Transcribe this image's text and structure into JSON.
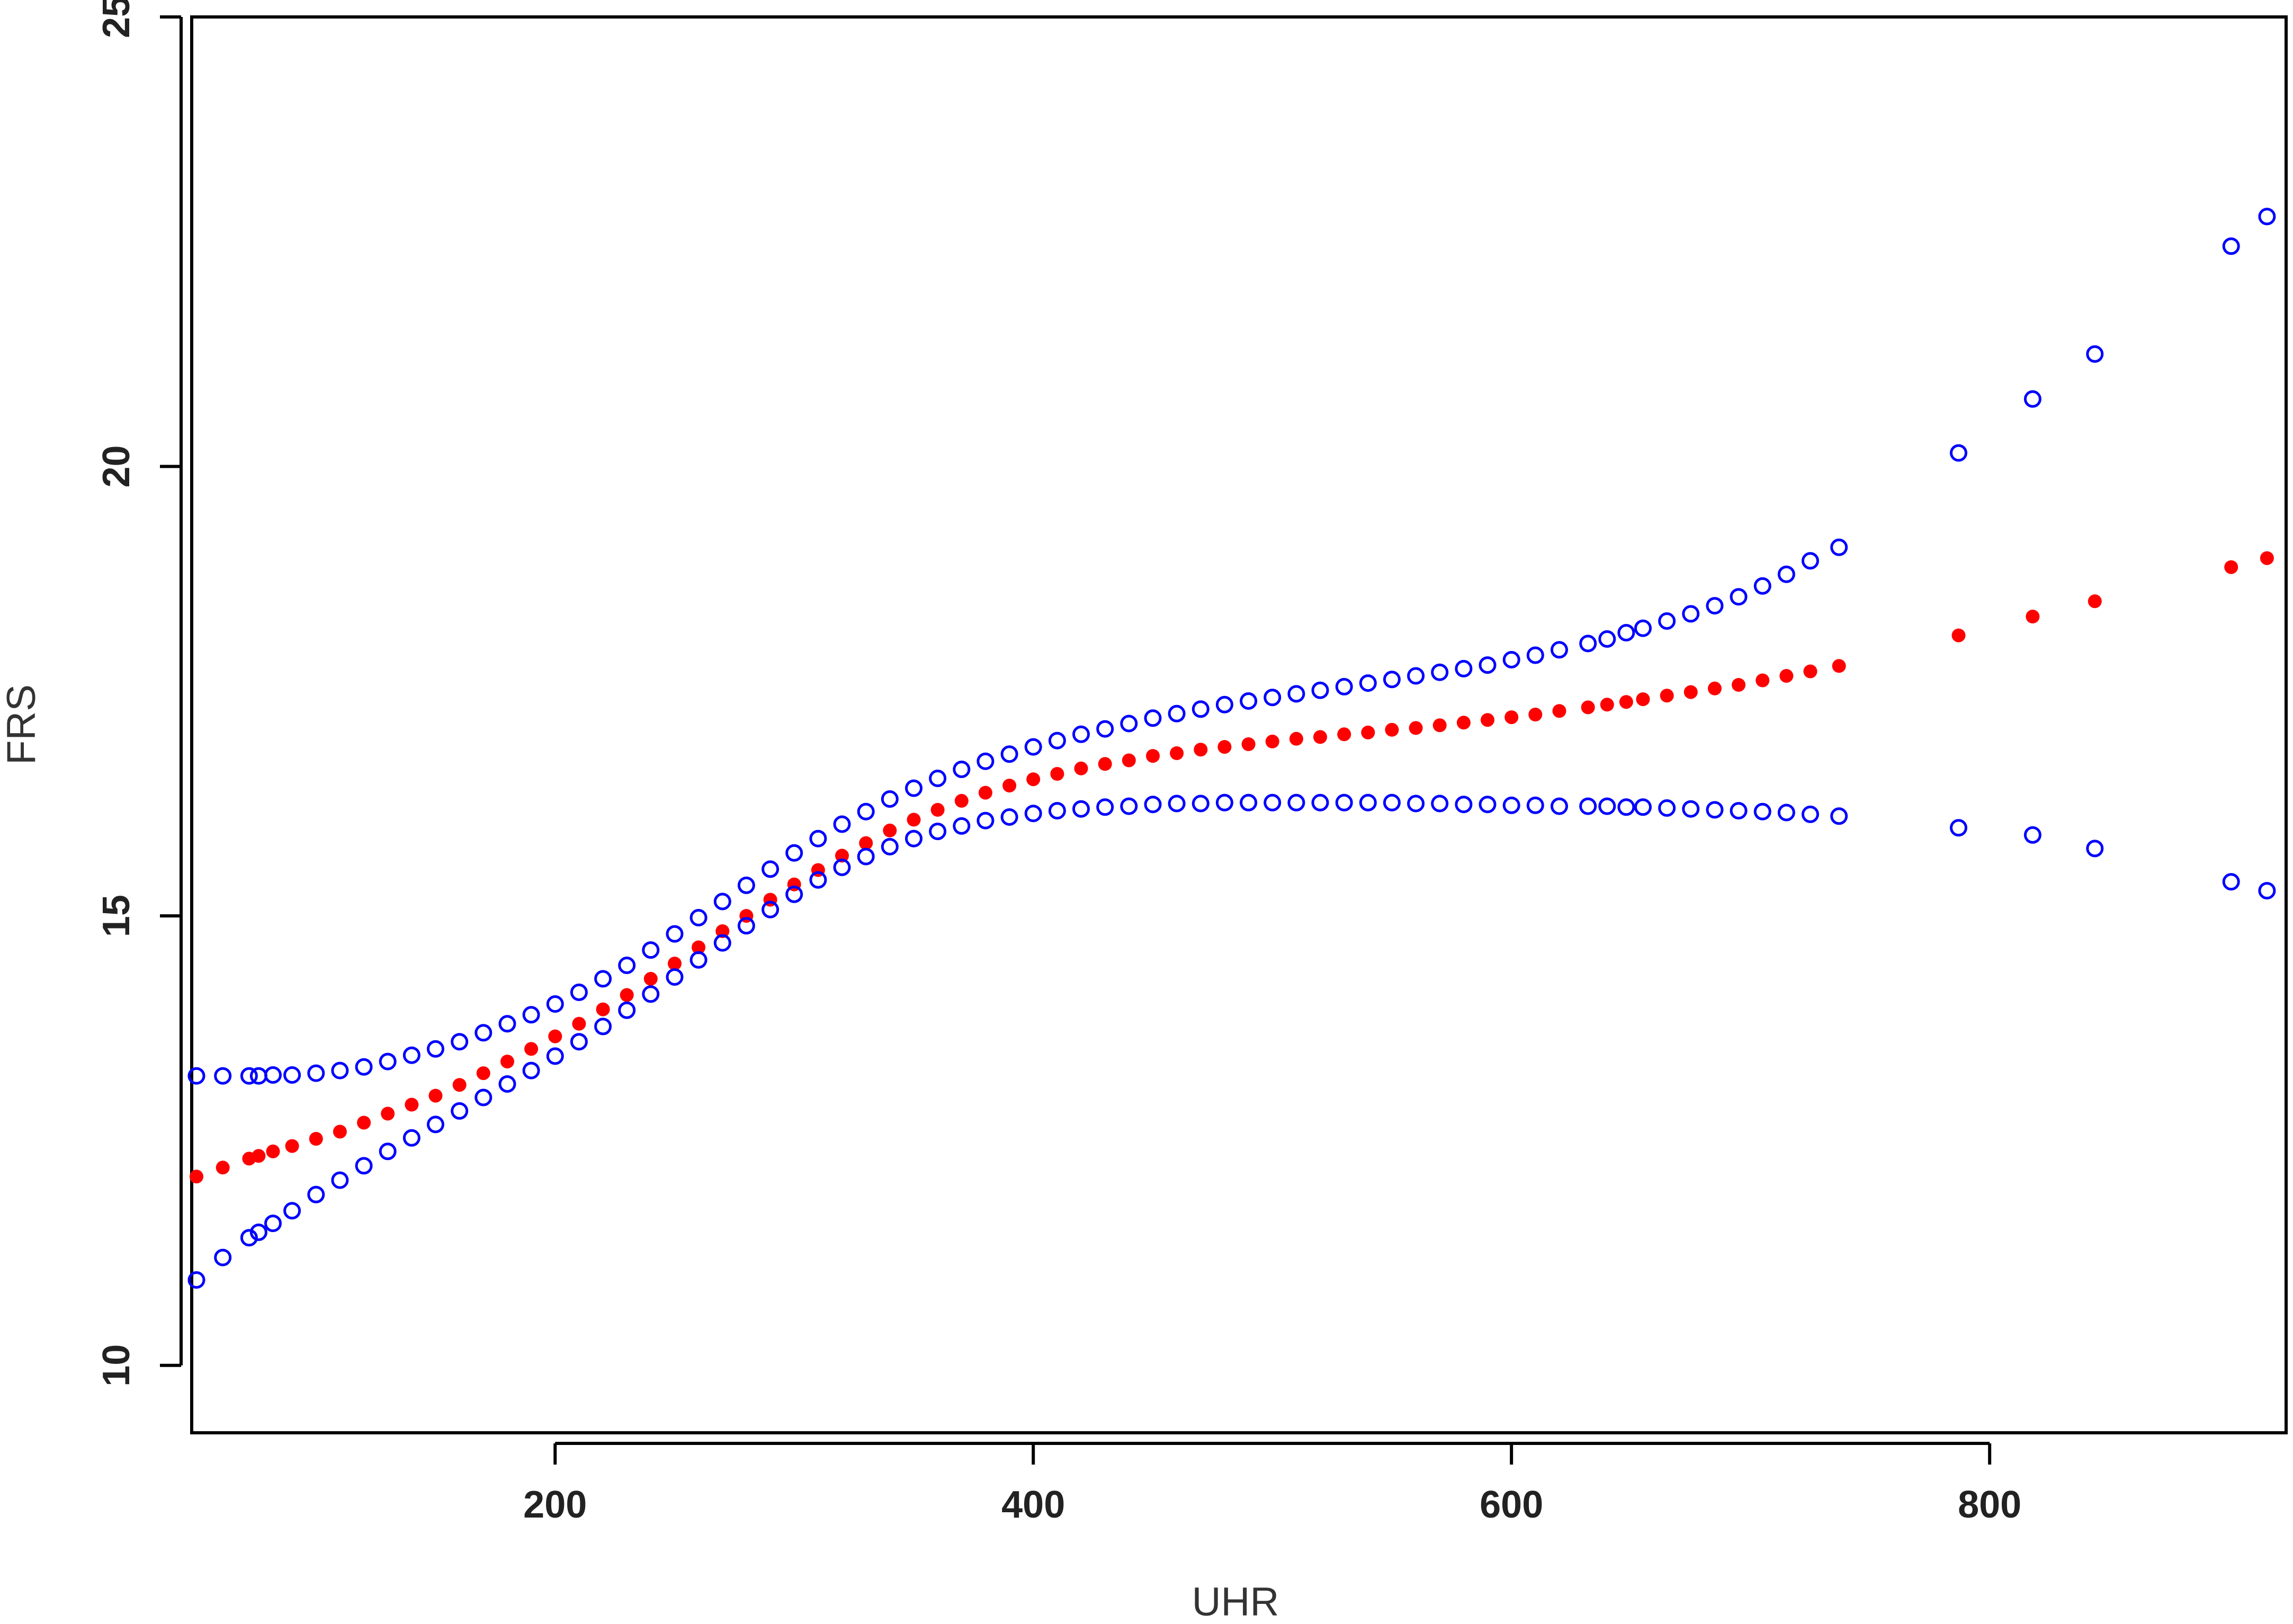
{
  "chart_data": {
    "type": "scatter",
    "title": "",
    "xlabel": "UHR",
    "ylabel": "FRS",
    "xlim": [
      48,
      924
    ],
    "ylim": [
      9.25,
      25
    ],
    "xticks": [
      200,
      400,
      600,
      800
    ],
    "xtick_labels": [
      "200",
      "400",
      "600",
      "800"
    ],
    "yticks": [
      10,
      15,
      20,
      25
    ],
    "ytick_labels": [
      "10",
      "15",
      "20",
      "25"
    ],
    "grid": false,
    "legend": "none",
    "series": [
      {
        "marker": "open-circle",
        "color": "#0000ff",
        "points": [
          [
            50,
            13.22
          ],
          [
            61,
            13.22
          ],
          [
            72,
            13.22
          ],
          [
            76,
            13.22
          ],
          [
            82,
            13.23
          ],
          [
            90,
            13.23
          ],
          [
            100,
            13.25
          ],
          [
            110,
            13.28
          ],
          [
            120,
            13.32
          ],
          [
            130,
            13.38
          ],
          [
            140,
            13.45
          ],
          [
            150,
            13.52
          ],
          [
            160,
            13.6
          ],
          [
            170,
            13.7
          ],
          [
            180,
            13.8
          ],
          [
            190,
            13.9
          ],
          [
            200,
            14.02
          ],
          [
            210,
            14.15
          ],
          [
            220,
            14.3
          ],
          [
            230,
            14.45
          ],
          [
            240,
            14.62
          ],
          [
            250,
            14.8
          ],
          [
            260,
            14.98
          ],
          [
            270,
            15.16
          ],
          [
            280,
            15.34
          ],
          [
            290,
            15.52
          ],
          [
            300,
            15.7
          ],
          [
            310,
            15.86
          ],
          [
            320,
            16.02
          ],
          [
            330,
            16.16
          ],
          [
            340,
            16.3
          ],
          [
            350,
            16.42
          ],
          [
            360,
            16.53
          ],
          [
            370,
            16.63
          ],
          [
            380,
            16.72
          ],
          [
            390,
            16.8
          ],
          [
            400,
            16.88
          ],
          [
            410,
            16.95
          ],
          [
            420,
            17.02
          ],
          [
            430,
            17.08
          ],
          [
            440,
            17.14
          ],
          [
            450,
            17.2
          ],
          [
            460,
            17.25
          ],
          [
            470,
            17.3
          ],
          [
            480,
            17.35
          ],
          [
            490,
            17.39
          ],
          [
            500,
            17.43
          ],
          [
            510,
            17.47
          ],
          [
            520,
            17.51
          ],
          [
            530,
            17.55
          ],
          [
            540,
            17.59
          ],
          [
            550,
            17.63
          ],
          [
            560,
            17.67
          ],
          [
            570,
            17.71
          ],
          [
            580,
            17.75
          ],
          [
            590,
            17.79
          ],
          [
            600,
            17.85
          ],
          [
            610,
            17.9
          ],
          [
            620,
            17.96
          ],
          [
            632,
            18.03
          ],
          [
            640,
            18.08
          ],
          [
            648,
            18.15
          ],
          [
            655,
            18.2
          ],
          [
            665,
            18.28
          ],
          [
            675,
            18.36
          ],
          [
            685,
            18.45
          ],
          [
            695,
            18.55
          ],
          [
            705,
            18.67
          ],
          [
            715,
            18.8
          ],
          [
            725,
            18.95
          ],
          [
            737,
            19.1
          ],
          [
            787,
            20.15
          ],
          [
            818,
            20.75
          ],
          [
            844,
            21.25
          ],
          [
            901,
            22.45
          ],
          [
            916,
            22.78
          ]
        ]
      },
      {
        "marker": "filled-circle",
        "color": "#ff0000",
        "points": [
          [
            50,
            12.1
          ],
          [
            61,
            12.2
          ],
          [
            72,
            12.3
          ],
          [
            76,
            12.33
          ],
          [
            82,
            12.38
          ],
          [
            90,
            12.44
          ],
          [
            100,
            12.52
          ],
          [
            110,
            12.6
          ],
          [
            120,
            12.7
          ],
          [
            130,
            12.8
          ],
          [
            140,
            12.9
          ],
          [
            150,
            13.0
          ],
          [
            160,
            13.12
          ],
          [
            170,
            13.25
          ],
          [
            180,
            13.38
          ],
          [
            190,
            13.52
          ],
          [
            200,
            13.66
          ],
          [
            210,
            13.8
          ],
          [
            220,
            13.96
          ],
          [
            230,
            14.12
          ],
          [
            240,
            14.3
          ],
          [
            250,
            14.47
          ],
          [
            260,
            14.65
          ],
          [
            270,
            14.83
          ],
          [
            280,
            15.0
          ],
          [
            290,
            15.18
          ],
          [
            300,
            15.35
          ],
          [
            310,
            15.51
          ],
          [
            320,
            15.67
          ],
          [
            330,
            15.81
          ],
          [
            340,
            15.95
          ],
          [
            350,
            16.07
          ],
          [
            360,
            16.18
          ],
          [
            370,
            16.28
          ],
          [
            380,
            16.37
          ],
          [
            390,
            16.45
          ],
          [
            400,
            16.52
          ],
          [
            410,
            16.58
          ],
          [
            420,
            16.64
          ],
          [
            430,
            16.69
          ],
          [
            440,
            16.73
          ],
          [
            450,
            16.78
          ],
          [
            460,
            16.81
          ],
          [
            470,
            16.85
          ],
          [
            480,
            16.88
          ],
          [
            490,
            16.91
          ],
          [
            500,
            16.94
          ],
          [
            510,
            16.97
          ],
          [
            520,
            16.99
          ],
          [
            530,
            17.02
          ],
          [
            540,
            17.04
          ],
          [
            550,
            17.07
          ],
          [
            560,
            17.09
          ],
          [
            570,
            17.12
          ],
          [
            580,
            17.15
          ],
          [
            590,
            17.18
          ],
          [
            600,
            17.21
          ],
          [
            610,
            17.24
          ],
          [
            620,
            17.28
          ],
          [
            632,
            17.32
          ],
          [
            640,
            17.35
          ],
          [
            648,
            17.38
          ],
          [
            655,
            17.41
          ],
          [
            665,
            17.45
          ],
          [
            675,
            17.49
          ],
          [
            685,
            17.53
          ],
          [
            695,
            17.57
          ],
          [
            705,
            17.62
          ],
          [
            715,
            17.67
          ],
          [
            725,
            17.72
          ],
          [
            737,
            17.78
          ],
          [
            787,
            18.12
          ],
          [
            818,
            18.33
          ],
          [
            844,
            18.5
          ],
          [
            901,
            18.88
          ],
          [
            916,
            18.98
          ]
        ]
      },
      {
        "marker": "open-circle",
        "color": "#0000ff",
        "points": [
          [
            50,
            10.95
          ],
          [
            61,
            11.2
          ],
          [
            72,
            11.42
          ],
          [
            76,
            11.48
          ],
          [
            82,
            11.58
          ],
          [
            90,
            11.72
          ],
          [
            100,
            11.9
          ],
          [
            110,
            12.06
          ],
          [
            120,
            12.22
          ],
          [
            130,
            12.38
          ],
          [
            140,
            12.53
          ],
          [
            150,
            12.68
          ],
          [
            160,
            12.83
          ],
          [
            170,
            12.98
          ],
          [
            180,
            13.13
          ],
          [
            190,
            13.28
          ],
          [
            200,
            13.44
          ],
          [
            210,
            13.6
          ],
          [
            220,
            13.77
          ],
          [
            230,
            13.95
          ],
          [
            240,
            14.13
          ],
          [
            250,
            14.32
          ],
          [
            260,
            14.51
          ],
          [
            270,
            14.7
          ],
          [
            280,
            14.89
          ],
          [
            290,
            15.07
          ],
          [
            300,
            15.24
          ],
          [
            310,
            15.4
          ],
          [
            320,
            15.54
          ],
          [
            330,
            15.66
          ],
          [
            340,
            15.77
          ],
          [
            350,
            15.86
          ],
          [
            360,
            15.94
          ],
          [
            370,
            16.0
          ],
          [
            380,
            16.06
          ],
          [
            390,
            16.1
          ],
          [
            400,
            16.14
          ],
          [
            410,
            16.17
          ],
          [
            420,
            16.19
          ],
          [
            430,
            16.21
          ],
          [
            440,
            16.22
          ],
          [
            450,
            16.24
          ],
          [
            460,
            16.25
          ],
          [
            470,
            16.25
          ],
          [
            480,
            16.26
          ],
          [
            490,
            16.26
          ],
          [
            500,
            16.26
          ],
          [
            510,
            16.26
          ],
          [
            520,
            16.26
          ],
          [
            530,
            16.26
          ],
          [
            540,
            16.26
          ],
          [
            550,
            16.26
          ],
          [
            560,
            16.25
          ],
          [
            570,
            16.25
          ],
          [
            580,
            16.24
          ],
          [
            590,
            16.24
          ],
          [
            600,
            16.23
          ],
          [
            610,
            16.23
          ],
          [
            620,
            16.22
          ],
          [
            632,
            16.22
          ],
          [
            640,
            16.22
          ],
          [
            648,
            16.21
          ],
          [
            655,
            16.21
          ],
          [
            665,
            16.2
          ],
          [
            675,
            16.19
          ],
          [
            685,
            16.18
          ],
          [
            695,
            16.17
          ],
          [
            705,
            16.16
          ],
          [
            715,
            16.15
          ],
          [
            725,
            16.13
          ],
          [
            737,
            16.11
          ],
          [
            787,
            15.98
          ],
          [
            818,
            15.9
          ],
          [
            844,
            15.75
          ],
          [
            901,
            15.38
          ],
          [
            916,
            15.28
          ]
        ]
      }
    ]
  }
}
